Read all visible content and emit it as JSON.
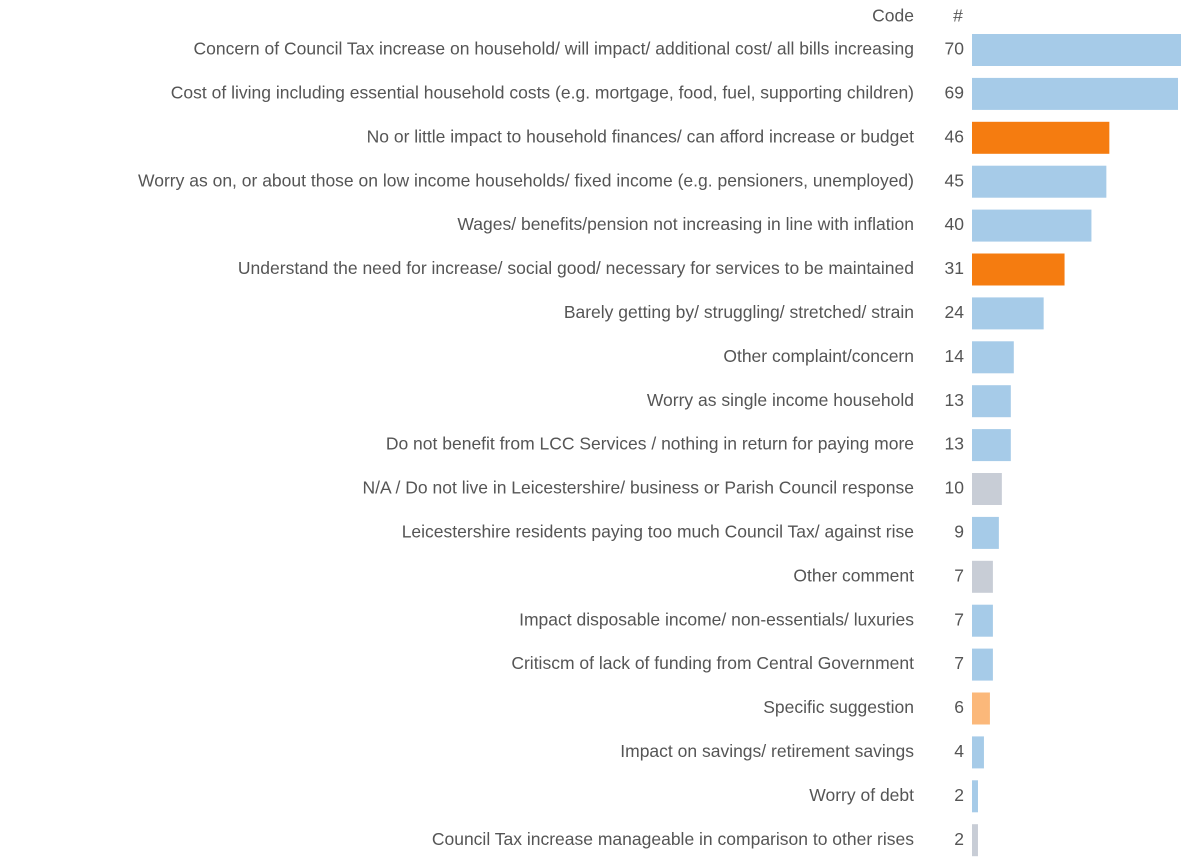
{
  "chart_data": {
    "type": "bar",
    "orientation": "horizontal",
    "column_headers": [
      "Code",
      "#"
    ],
    "categories": [
      "Concern of Council Tax increase on household/ will impact/ additional cost/ all bills increasing",
      "Cost of living including essential household costs (e.g. mortgage, food, fuel, supporting children)",
      "No or little impact to household finances/ can afford increase or budget",
      "Worry as on, or about those on low income households/ fixed income (e.g. pensioners, unemployed)",
      "Wages/ benefits/pension not increasing in line with inflation",
      "Understand the need for increase/ social good/ necessary for services to be maintained",
      "Barely getting by/ struggling/ stretched/ strain",
      "Other complaint/concern",
      "Worry as single income household",
      "Do not benefit from LCC Services / nothing in return for paying more",
      "N/A / Do not live in Leicestershire/ business or Parish Council response",
      "Leicestershire residents paying too much Council Tax/ against rise",
      "Other comment",
      "Impact disposable income/ non-essentials/ luxuries",
      "Critiscm of lack of funding from Central Government",
      "Specific suggestion",
      "Impact on savings/ retirement savings",
      "Worry of debt",
      "Council Tax increase manageable in comparison to other rises"
    ],
    "values": [
      70,
      69,
      46,
      45,
      40,
      31,
      24,
      14,
      13,
      13,
      10,
      9,
      7,
      7,
      7,
      6,
      4,
      2,
      2
    ],
    "colors": [
      "#a6cbe8",
      "#a6cbe8",
      "#f57c10",
      "#a6cbe8",
      "#a6cbe8",
      "#f57c10",
      "#a6cbe8",
      "#a6cbe8",
      "#a6cbe8",
      "#a6cbe8",
      "#c8cdd6",
      "#a6cbe8",
      "#c8cdd6",
      "#a6cbe8",
      "#a6cbe8",
      "#fbb87a",
      "#a6cbe8",
      "#a6cbe8",
      "#c8cdd6"
    ]
  }
}
